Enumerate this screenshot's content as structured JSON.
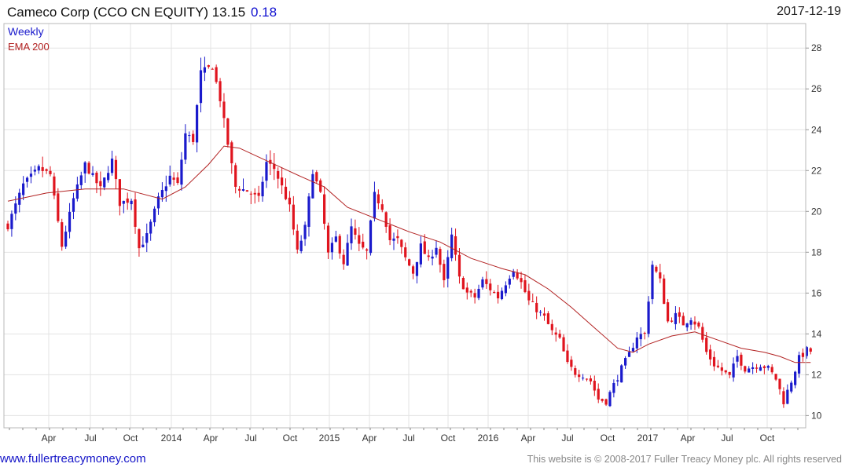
{
  "header": {
    "title": "Cameco Corp (CCO CN EQUITY) 13.15",
    "change": "0.18",
    "date": "2017-12-19"
  },
  "footer": {
    "site": "www.fullertreacymoney.com",
    "copyright": "This website is © 2008-2017 Fuller Treacy Money plc. All rights reserved"
  },
  "colors": {
    "up": "#1a1acc",
    "down": "#e0141e",
    "ema": "#b22222",
    "grid": "#e3e3e3"
  },
  "chart_data": {
    "type": "candlestick",
    "interval_label": "Weekly",
    "ema_label": "EMA 200",
    "y_range": [
      9.4,
      29.2
    ],
    "y_ticks": [
      "10",
      "12",
      "14",
      "16",
      "18",
      "20",
      "22",
      "24",
      "26",
      "28"
    ],
    "x_labels": [
      "Apr",
      "Jul",
      "Oct",
      "2014",
      "Apr",
      "Jul",
      "Oct",
      "2015",
      "Apr",
      "Jul",
      "Oct",
      "2016",
      "Apr",
      "Jul",
      "Oct",
      "2017",
      "Apr",
      "Jul",
      "Oct"
    ],
    "weeks": 209,
    "close_path": [
      {
        "w": 0,
        "c": 19.3
      },
      {
        "w": 4,
        "c": 21.3
      },
      {
        "w": 8,
        "c": 22.1
      },
      {
        "w": 11,
        "c": 21.8
      },
      {
        "w": 14,
        "c": 18.3
      },
      {
        "w": 17,
        "c": 20.6
      },
      {
        "w": 20,
        "c": 22.3
      },
      {
        "w": 24,
        "c": 21.1
      },
      {
        "w": 27,
        "c": 22.5
      },
      {
        "w": 29,
        "c": 20.4
      },
      {
        "w": 32,
        "c": 20.6
      },
      {
        "w": 34,
        "c": 18.2
      },
      {
        "w": 36,
        "c": 18.8
      },
      {
        "w": 39,
        "c": 20.6
      },
      {
        "w": 42,
        "c": 21.7
      },
      {
        "w": 44,
        "c": 21.3
      },
      {
        "w": 46,
        "c": 23.8
      },
      {
        "w": 48,
        "c": 23.5
      },
      {
        "w": 50,
        "c": 26.8
      },
      {
        "w": 53,
        "c": 27.1
      },
      {
        "w": 55,
        "c": 25.5
      },
      {
        "w": 57,
        "c": 23.3
      },
      {
        "w": 59,
        "c": 21.2
      },
      {
        "w": 62,
        "c": 21.0
      },
      {
        "w": 65,
        "c": 20.6
      },
      {
        "w": 67,
        "c": 22.4
      },
      {
        "w": 69,
        "c": 22.1
      },
      {
        "w": 71,
        "c": 21.2
      },
      {
        "w": 73,
        "c": 20.2
      },
      {
        "w": 75,
        "c": 18.0
      },
      {
        "w": 77,
        "c": 19.2
      },
      {
        "w": 79,
        "c": 22.0
      },
      {
        "w": 81,
        "c": 20.8
      },
      {
        "w": 83,
        "c": 17.9
      },
      {
        "w": 85,
        "c": 18.7
      },
      {
        "w": 87,
        "c": 17.5
      },
      {
        "w": 89,
        "c": 19.2
      },
      {
        "w": 91,
        "c": 18.3
      },
      {
        "w": 93,
        "c": 18.0
      },
      {
        "w": 95,
        "c": 20.8
      },
      {
        "w": 97,
        "c": 20.2
      },
      {
        "w": 99,
        "c": 18.6
      },
      {
        "w": 101,
        "c": 18.6
      },
      {
        "w": 103,
        "c": 17.7
      },
      {
        "w": 105,
        "c": 17.0
      },
      {
        "w": 107,
        "c": 18.3
      },
      {
        "w": 109,
        "c": 17.6
      },
      {
        "w": 111,
        "c": 18.3
      },
      {
        "w": 113,
        "c": 16.5
      },
      {
        "w": 115,
        "c": 18.8
      },
      {
        "w": 117,
        "c": 16.7
      },
      {
        "w": 119,
        "c": 16.0
      },
      {
        "w": 121,
        "c": 15.8
      },
      {
        "w": 123,
        "c": 16.6
      },
      {
        "w": 125,
        "c": 16.2
      },
      {
        "w": 127,
        "c": 15.8
      },
      {
        "w": 129,
        "c": 16.5
      },
      {
        "w": 131,
        "c": 17.2
      },
      {
        "w": 133,
        "c": 16.5
      },
      {
        "w": 135,
        "c": 15.6
      },
      {
        "w": 137,
        "c": 15.2
      },
      {
        "w": 139,
        "c": 14.8
      },
      {
        "w": 141,
        "c": 14.1
      },
      {
        "w": 143,
        "c": 13.7
      },
      {
        "w": 145,
        "c": 12.5
      },
      {
        "w": 147,
        "c": 12.1
      },
      {
        "w": 149,
        "c": 12.0
      },
      {
        "w": 151,
        "c": 11.7
      },
      {
        "w": 153,
        "c": 10.8
      },
      {
        "w": 155,
        "c": 10.7
      },
      {
        "w": 157,
        "c": 11.5
      },
      {
        "w": 159,
        "c": 12.3
      },
      {
        "w": 161,
        "c": 13.0
      },
      {
        "w": 163,
        "c": 13.9
      },
      {
        "w": 165,
        "c": 14.0
      },
      {
        "w": 167,
        "c": 17.4
      },
      {
        "w": 169,
        "c": 16.6
      },
      {
        "w": 171,
        "c": 14.6
      },
      {
        "w": 173,
        "c": 14.9
      },
      {
        "w": 175,
        "c": 14.5
      },
      {
        "w": 177,
        "c": 14.8
      },
      {
        "w": 179,
        "c": 14.3
      },
      {
        "w": 181,
        "c": 13.1
      },
      {
        "w": 183,
        "c": 12.5
      },
      {
        "w": 185,
        "c": 12.2
      },
      {
        "w": 187,
        "c": 11.9
      },
      {
        "w": 189,
        "c": 12.9
      },
      {
        "w": 191,
        "c": 12.3
      },
      {
        "w": 193,
        "c": 12.4
      },
      {
        "w": 195,
        "c": 12.5
      },
      {
        "w": 197,
        "c": 12.3
      },
      {
        "w": 199,
        "c": 11.8
      },
      {
        "w": 201,
        "c": 10.7
      },
      {
        "w": 203,
        "c": 11.7
      },
      {
        "w": 205,
        "c": 12.8
      },
      {
        "w": 207,
        "c": 13.2
      },
      {
        "w": 208,
        "c": 13.15
      }
    ],
    "ema_path": [
      {
        "w": 0,
        "c": 20.5
      },
      {
        "w": 10,
        "c": 20.9
      },
      {
        "w": 20,
        "c": 21.1
      },
      {
        "w": 30,
        "c": 21.1
      },
      {
        "w": 40,
        "c": 20.6
      },
      {
        "w": 46,
        "c": 21.2
      },
      {
        "w": 52,
        "c": 22.3
      },
      {
        "w": 56,
        "c": 23.2
      },
      {
        "w": 60,
        "c": 23.1
      },
      {
        "w": 68,
        "c": 22.4
      },
      {
        "w": 76,
        "c": 21.7
      },
      {
        "w": 82,
        "c": 21.2
      },
      {
        "w": 88,
        "c": 20.2
      },
      {
        "w": 96,
        "c": 19.6
      },
      {
        "w": 104,
        "c": 19.0
      },
      {
        "w": 112,
        "c": 18.5
      },
      {
        "w": 120,
        "c": 17.7
      },
      {
        "w": 128,
        "c": 17.2
      },
      {
        "w": 134,
        "c": 16.9
      },
      {
        "w": 140,
        "c": 16.2
      },
      {
        "w": 146,
        "c": 15.3
      },
      {
        "w": 152,
        "c": 14.3
      },
      {
        "w": 158,
        "c": 13.3
      },
      {
        "w": 162,
        "c": 13.1
      },
      {
        "w": 166,
        "c": 13.5
      },
      {
        "w": 172,
        "c": 13.9
      },
      {
        "w": 178,
        "c": 14.1
      },
      {
        "w": 184,
        "c": 13.7
      },
      {
        "w": 190,
        "c": 13.3
      },
      {
        "w": 196,
        "c": 13.1
      },
      {
        "w": 200,
        "c": 12.9
      },
      {
        "w": 204,
        "c": 12.6
      },
      {
        "w": 208,
        "c": 12.6
      }
    ]
  }
}
